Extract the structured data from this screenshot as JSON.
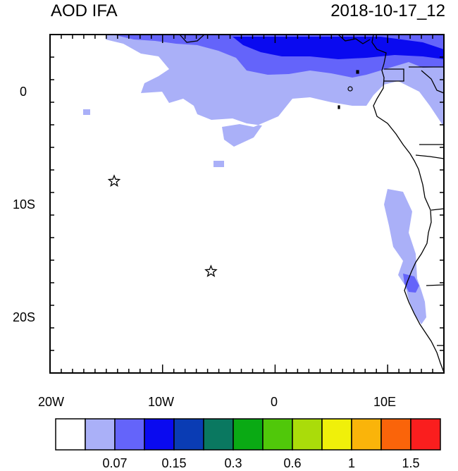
{
  "title_left": "AOD IFA",
  "title_right": "2018-10-17_12",
  "axes": {
    "lon_labels": [
      "20W",
      "10W",
      "0",
      "10E"
    ],
    "lat_labels": [
      "0",
      "10S",
      "20S"
    ],
    "lon_range": [
      -20,
      15
    ],
    "lat_range": [
      -25,
      5
    ]
  },
  "markers": [
    {
      "name": "star",
      "lon": -14.3,
      "lat": -8.0
    },
    {
      "name": "star",
      "lon": -5.7,
      "lat": -16.0
    }
  ],
  "colorbar": {
    "colors": [
      "#ffffff",
      "#aab0f8",
      "#6464fa",
      "#0a0af0",
      "#0a3cb4",
      "#0a7860",
      "#0aaa14",
      "#50c80a",
      "#aadc0a",
      "#f0f00a",
      "#fab40a",
      "#fa640a",
      "#fa1e1e"
    ],
    "labels": [
      "0.07",
      "0.15",
      "0.3",
      "0.6",
      "1",
      "1.5"
    ]
  },
  "chart_data": {
    "type": "heatmap",
    "title": "AOD IFA",
    "subtitle": "2018-10-17_12",
    "xlim": [
      -20,
      15
    ],
    "ylim": [
      -25,
      5
    ]
  }
}
